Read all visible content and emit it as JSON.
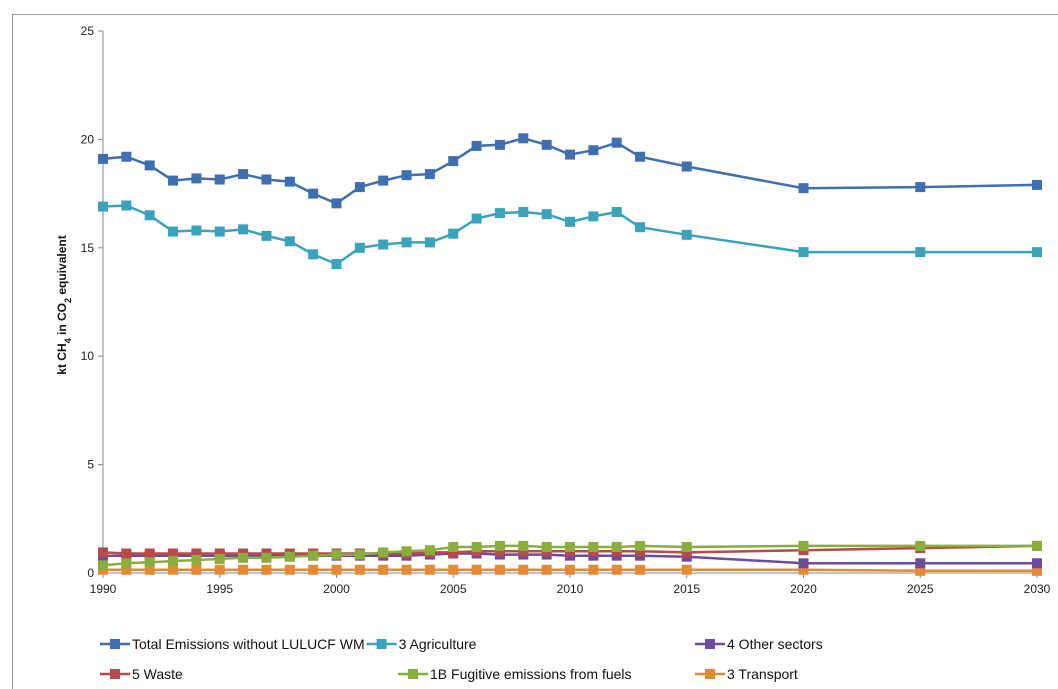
{
  "chart_data": {
    "type": "line",
    "ylabel": {
      "prefix": "kt CH",
      "sub": "4",
      "mid": " in CO",
      "sub2": "2",
      "suffix": " equivalent"
    },
    "ylim": [
      0,
      25
    ],
    "yticks": [
      0,
      5,
      10,
      15,
      20,
      25
    ],
    "xlim": [
      1990,
      2030
    ],
    "xticks": [
      1990,
      1995,
      2000,
      2005,
      2010,
      2015,
      2020,
      2025,
      2030
    ],
    "grid": false,
    "legend_position": "bottom",
    "x": [
      1990,
      1991,
      1992,
      1993,
      1994,
      1995,
      1996,
      1997,
      1998,
      1999,
      2000,
      2001,
      2002,
      2003,
      2004,
      2005,
      2006,
      2007,
      2008,
      2009,
      2010,
      2011,
      2012,
      2013,
      2015,
      2020,
      2025,
      2030
    ],
    "series": [
      {
        "name": "Total Emissions without LULUCF WM",
        "color": "#3f6fae",
        "values": [
          19.1,
          19.2,
          18.8,
          18.1,
          18.2,
          18.15,
          18.4,
          18.15,
          18.05,
          17.5,
          17.05,
          17.8,
          18.1,
          18.35,
          18.4,
          19.0,
          19.7,
          19.75,
          20.05,
          19.75,
          19.3,
          19.5,
          19.85,
          19.2,
          18.75,
          17.75,
          17.8,
          17.9
        ]
      },
      {
        "name": "3 Agriculture",
        "color": "#3aa2bb",
        "values": [
          16.9,
          16.95,
          16.5,
          15.75,
          15.8,
          15.75,
          15.85,
          15.55,
          15.3,
          14.7,
          14.25,
          15.0,
          15.15,
          15.25,
          15.25,
          15.65,
          16.35,
          16.6,
          16.65,
          16.55,
          16.2,
          16.45,
          16.65,
          15.95,
          15.6,
          14.8,
          14.8,
          14.8
        ]
      },
      {
        "name": "4 Other sectors",
        "color": "#6e4c9c",
        "values": [
          0.8,
          0.8,
          0.8,
          0.8,
          0.8,
          0.8,
          0.8,
          0.8,
          0.8,
          0.8,
          0.8,
          0.8,
          0.8,
          0.8,
          0.85,
          0.9,
          0.9,
          0.85,
          0.85,
          0.85,
          0.8,
          0.8,
          0.8,
          0.8,
          0.75,
          0.45,
          0.45,
          0.45
        ]
      },
      {
        "name": "5 Waste",
        "color": "#b74a4a",
        "values": [
          0.95,
          0.9,
          0.9,
          0.9,
          0.9,
          0.9,
          0.9,
          0.9,
          0.9,
          0.9,
          0.9,
          0.9,
          0.9,
          0.9,
          0.95,
          0.95,
          1.0,
          1.0,
          1.0,
          1.0,
          1.0,
          1.0,
          1.0,
          1.0,
          0.95,
          1.05,
          1.15,
          1.25
        ]
      },
      {
        "name": "1B   Fugitive emissions from fuels",
        "color": "#8aae3e",
        "values": [
          0.35,
          0.45,
          0.5,
          0.55,
          0.6,
          0.65,
          0.7,
          0.7,
          0.75,
          0.8,
          0.85,
          0.85,
          0.95,
          1.0,
          1.05,
          1.2,
          1.2,
          1.25,
          1.25,
          1.2,
          1.2,
          1.2,
          1.2,
          1.25,
          1.2,
          1.25,
          1.25,
          1.25
        ]
      },
      {
        "name": "3 Transport",
        "color": "#e48a34",
        "values": [
          0.15,
          0.15,
          0.15,
          0.15,
          0.15,
          0.15,
          0.15,
          0.15,
          0.15,
          0.15,
          0.15,
          0.15,
          0.15,
          0.15,
          0.15,
          0.15,
          0.15,
          0.15,
          0.15,
          0.15,
          0.15,
          0.15,
          0.15,
          0.15,
          0.15,
          0.15,
          0.1,
          0.1
        ]
      }
    ]
  }
}
